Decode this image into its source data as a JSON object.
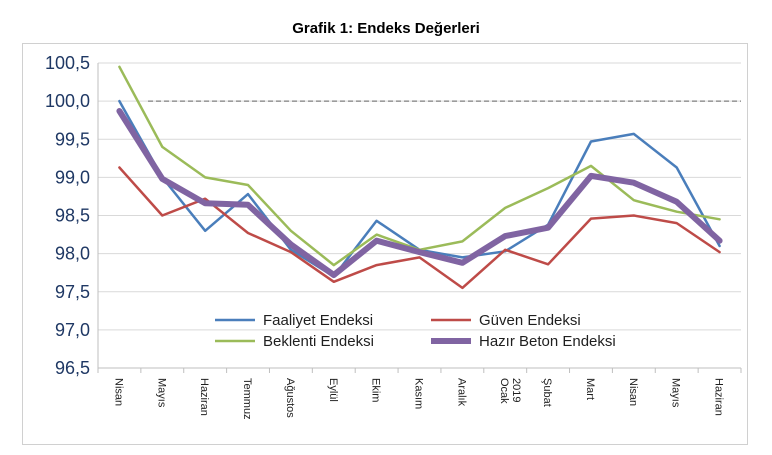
{
  "chart_data": {
    "type": "line",
    "title": "Grafik 1: Endeks Değerleri",
    "xlabel": "",
    "ylabel": "",
    "ylim": [
      96.5,
      100.5
    ],
    "yticks": [
      "96,5",
      "97,0",
      "97,5",
      "98,0",
      "98,5",
      "99,0",
      "99,5",
      "100,0",
      "100,5"
    ],
    "ytick_values": [
      96.5,
      97.0,
      97.5,
      98.0,
      98.5,
      99.0,
      99.5,
      100.0,
      100.5
    ],
    "categories": [
      "Nisan",
      "Mayıs",
      "Haziran",
      "Temmuz",
      "Ağustos",
      "Eylül",
      "Ekim",
      "Kasım",
      "Aralık",
      "Ocak",
      "Şubat",
      "Mart",
      "Nisan",
      "Mayıs",
      "Haziran"
    ],
    "year_marker": {
      "label": "2019",
      "category_index": 9
    },
    "reference_line": {
      "value": 100.0,
      "style": "dashed",
      "color": "#7f7f7f"
    },
    "series": [
      {
        "name": "Faaliyet Endeksi",
        "color": "#4a7ebb",
        "width": 2.5,
        "values": [
          100.0,
          99.0,
          98.3,
          98.78,
          98.05,
          97.7,
          98.43,
          98.05,
          97.95,
          98.03,
          98.38,
          99.47,
          99.57,
          99.13,
          98.1
        ]
      },
      {
        "name": "Güven Endeksi",
        "color": "#be4b48",
        "width": 2.5,
        "values": [
          99.13,
          98.5,
          98.72,
          98.27,
          98.02,
          97.63,
          97.85,
          97.95,
          97.55,
          98.05,
          97.86,
          98.46,
          98.5,
          98.4,
          98.02
        ]
      },
      {
        "name": "Beklenti Endeksi",
        "color": "#9bbb59",
        "width": 2.5,
        "values": [
          100.45,
          99.4,
          99.0,
          98.9,
          98.3,
          97.85,
          98.25,
          98.05,
          98.16,
          98.6,
          98.86,
          99.15,
          98.7,
          98.55,
          98.45
        ]
      },
      {
        "name": "Hazır Beton Endeksi",
        "color": "#8064a2",
        "width": 6,
        "values": [
          99.87,
          98.98,
          98.66,
          98.64,
          98.12,
          97.72,
          98.17,
          98.02,
          97.88,
          98.23,
          98.34,
          99.02,
          98.93,
          98.68,
          98.17
        ]
      }
    ],
    "legend": {
      "placement": "bottom-center",
      "columns": 2
    },
    "grid": true
  }
}
